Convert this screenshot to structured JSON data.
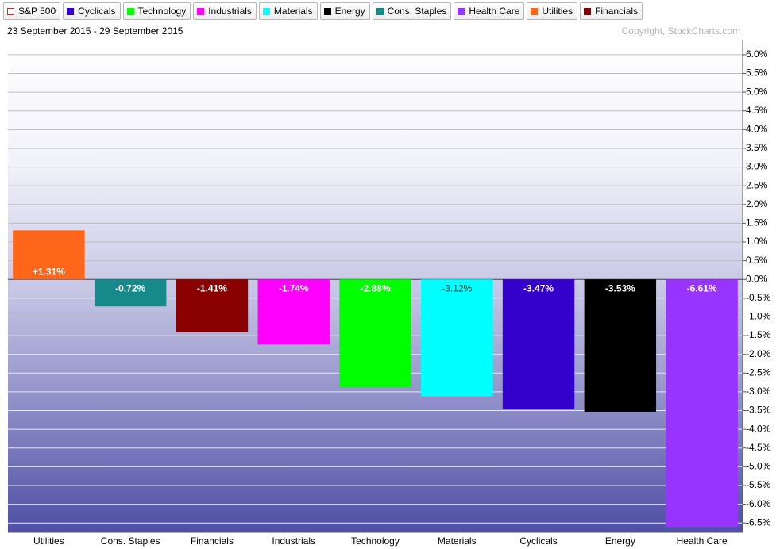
{
  "chart_data": {
    "type": "bar",
    "subtitle": "23 September 2015 - 29 September 2015",
    "copyright": "Copyright, StockCharts.com",
    "legend": [
      {
        "name": "S&P 500",
        "color": "#e8202a",
        "hollow": true
      },
      {
        "name": "Cyclicals",
        "color": "#3300cc"
      },
      {
        "name": "Technology",
        "color": "#00ff00"
      },
      {
        "name": "Industrials",
        "color": "#ff00ff"
      },
      {
        "name": "Materials",
        "color": "#00ffff"
      },
      {
        "name": "Energy",
        "color": "#000000"
      },
      {
        "name": "Cons. Staples",
        "color": "#168a8a"
      },
      {
        "name": "Health Care",
        "color": "#9933ff"
      },
      {
        "name": "Utilities",
        "color": "#ff6619"
      },
      {
        "name": "Financials",
        "color": "#8b0000"
      }
    ],
    "categories": [
      "Utilities",
      "Cons. Staples",
      "Financials",
      "Industrials",
      "Technology",
      "Materials",
      "Cyclicals",
      "Energy",
      "Health Care"
    ],
    "values": [
      1.31,
      -0.72,
      -1.41,
      -1.74,
      -2.88,
      -3.12,
      -3.47,
      -3.53,
      -6.61
    ],
    "value_labels": [
      "+1.31%",
      "-0.72%",
      "-1.41%",
      "-1.74%",
      "-2.88%",
      "-3.12%",
      "-3.47%",
      "-3.53%",
      "-6.61%"
    ],
    "colors": [
      "#ff6619",
      "#168a8a",
      "#8b0000",
      "#ff00ff",
      "#00ff00",
      "#00ffff",
      "#3300cc",
      "#000000",
      "#9933ff"
    ],
    "ylim": [
      -6.75,
      6.4
    ],
    "yticks": [
      {
        "value": 6,
        "label": "6.0%"
      },
      {
        "value": 5.5,
        "label": "5.5%"
      },
      {
        "value": 5,
        "label": "5.0%"
      },
      {
        "value": 4.5,
        "label": "4.5%"
      },
      {
        "value": 4,
        "label": "4.0%"
      },
      {
        "value": 3.5,
        "label": "3.5%"
      },
      {
        "value": 3,
        "label": "3.0%"
      },
      {
        "value": 2.5,
        "label": "2.5%"
      },
      {
        "value": 2,
        "label": "2.0%"
      },
      {
        "value": 1.5,
        "label": "1.5%"
      },
      {
        "value": 1,
        "label": "1.0%"
      },
      {
        "value": 0.5,
        "label": "0.5%"
      },
      {
        "value": 0,
        "label": "0.0%"
      },
      {
        "value": -0.5,
        "label": "-0.5%"
      },
      {
        "value": -1,
        "label": "-1.0%"
      },
      {
        "value": -1.5,
        "label": "-1.5%"
      },
      {
        "value": -2,
        "label": "-2.0%"
      },
      {
        "value": -2.5,
        "label": "-2.5%"
      },
      {
        "value": -3,
        "label": "-3.0%"
      },
      {
        "value": -3.5,
        "label": "-3.5%"
      },
      {
        "value": -4,
        "label": "-4.0%"
      },
      {
        "value": -4.5,
        "label": "-4.5%"
      },
      {
        "value": -5,
        "label": "-5.0%"
      },
      {
        "value": -5.5,
        "label": "-5.5%"
      },
      {
        "value": -6,
        "label": "-6.0%"
      },
      {
        "value": -6.5,
        "label": "-6.5%"
      }
    ],
    "grid": true
  }
}
